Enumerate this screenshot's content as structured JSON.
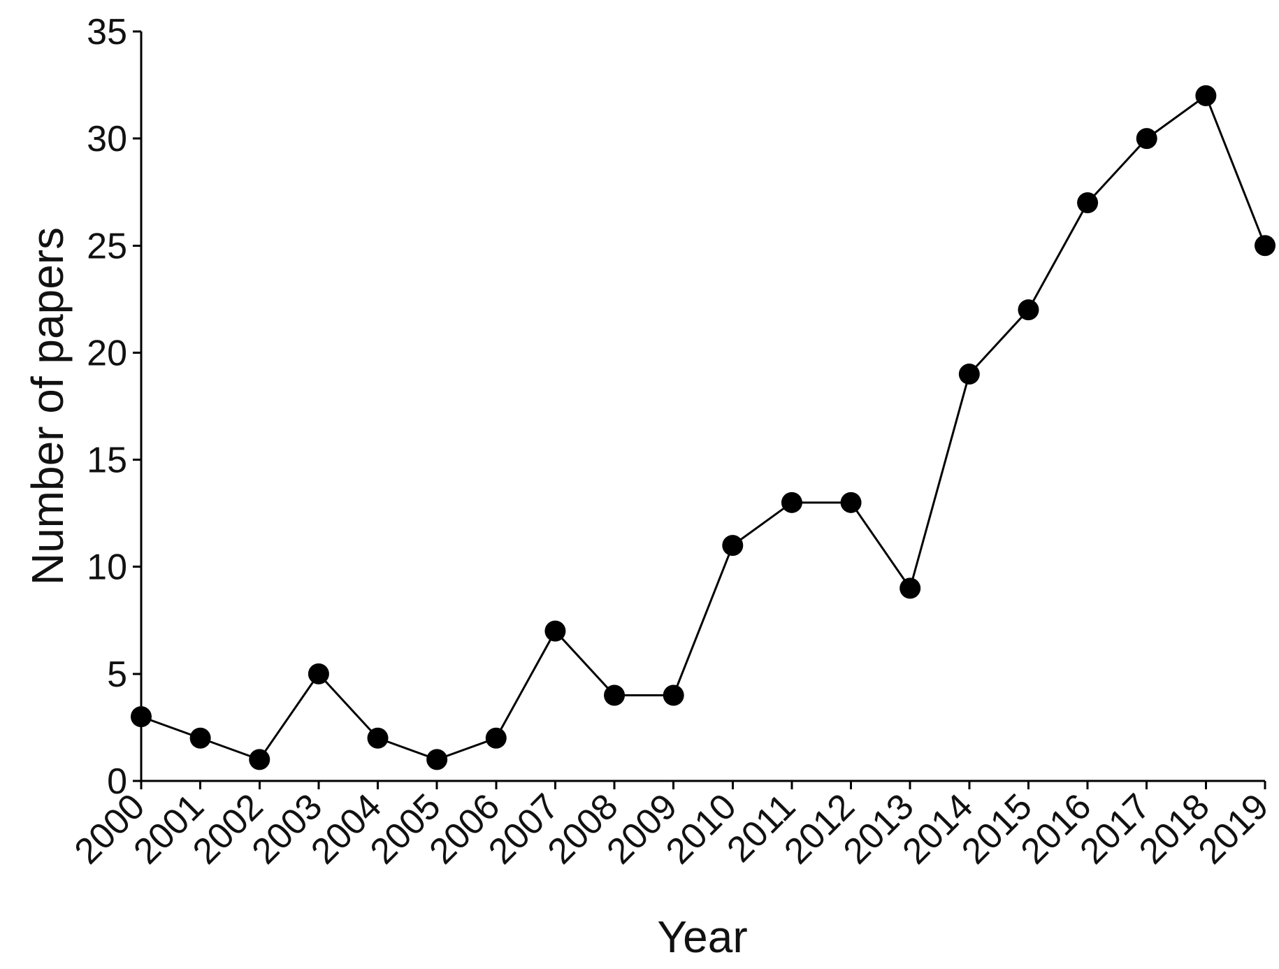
{
  "chart_data": {
    "type": "line",
    "title": "",
    "xlabel": "Year",
    "ylabel": "Number of papers",
    "categories": [
      "2000",
      "2001",
      "2002",
      "2003",
      "2004",
      "2005",
      "2006",
      "2007",
      "2008",
      "2009",
      "2010",
      "2011",
      "2012",
      "2013",
      "2014",
      "2015",
      "2016",
      "2017",
      "2018",
      "2019"
    ],
    "series": [
      {
        "values": [
          3,
          2,
          1,
          5,
          2,
          1,
          2,
          7,
          4,
          4,
          11,
          13,
          13,
          9,
          19,
          22,
          27,
          30,
          32,
          25
        ],
        "color": "#000000",
        "marker": "filled-circle"
      }
    ],
    "ylim": [
      0,
      35
    ],
    "yticks": [
      0,
      5,
      10,
      15,
      20,
      25,
      30,
      35
    ],
    "grid": false,
    "legend": "none",
    "x_tick_rotation": "-45deg"
  }
}
